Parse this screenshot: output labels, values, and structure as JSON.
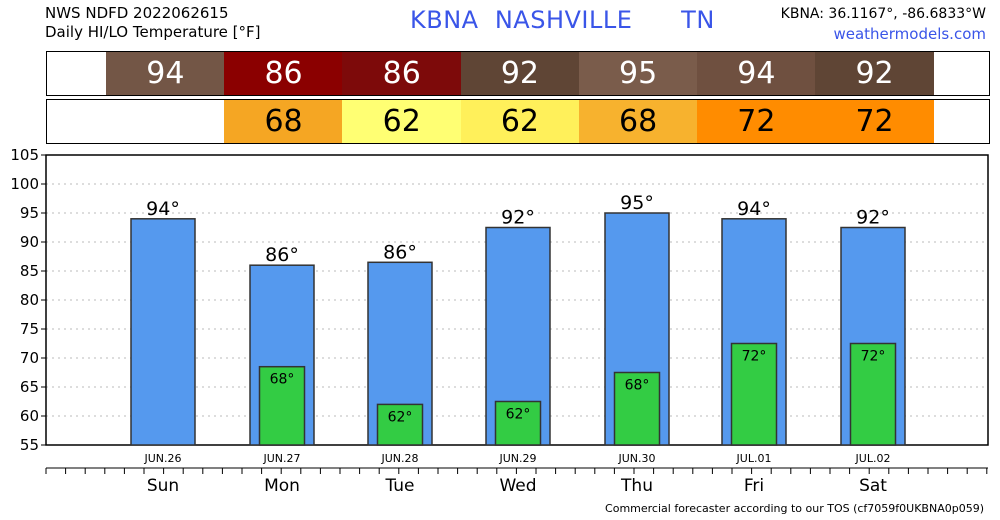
{
  "header": {
    "line1": "NWS NDFD 2022062615",
    "line2": "Daily HI/LO Temperature [°F]",
    "station_title": "KBNA  NASHVILLE      TN",
    "coords": "KBNA: 36.1167°, -86.6833°W",
    "site": "weathermodels.com"
  },
  "hi_strip": {
    "values": [
      "94",
      "86",
      "86",
      "92",
      "95",
      "94",
      "92"
    ],
    "colors": [
      "#735646",
      "#8b0000",
      "#7d0a0a",
      "#5f4535",
      "#7a5c4b",
      "#6f5040",
      "#5f4535"
    ]
  },
  "lo_strip": {
    "values": [
      "",
      "68",
      "62",
      "62",
      "68",
      "72",
      "72"
    ],
    "colors": [
      "#ffffff",
      "#f5a623",
      "#ffff73",
      "#fff05a",
      "#f7b22e",
      "#ff8c00",
      "#ff8c00"
    ]
  },
  "footer": "Commercial forecaster according to our TOS (cf7059f0UKBNA0p059)",
  "chart_data": {
    "type": "bar",
    "categories": [
      "Sun",
      "Mon",
      "Tue",
      "Wed",
      "Thu",
      "Fri",
      "Sat"
    ],
    "dates": [
      "JUN.26",
      "JUN.27",
      "JUN.28",
      "JUN.29",
      "JUN.30",
      "JUL.01",
      "JUL.02"
    ],
    "series": [
      {
        "values": [
          94,
          86,
          86.5,
          92.5,
          95,
          94,
          92.5
        ],
        "labels": [
          "94°",
          "86°",
          "86°",
          "92°",
          "95°",
          "94°",
          "92°"
        ],
        "color": "#5599ee"
      },
      {
        "values": [
          null,
          68.5,
          62,
          62.5,
          67.5,
          72.5,
          72.5
        ],
        "labels": [
          "",
          "68°",
          "62°",
          "62°",
          "68°",
          "72°",
          "72°"
        ],
        "color": "#33cc44"
      }
    ],
    "ylim": [
      55,
      105
    ],
    "yticks": [
      55,
      60,
      65,
      70,
      75,
      80,
      85,
      90,
      95,
      100,
      105
    ],
    "grid": true
  }
}
